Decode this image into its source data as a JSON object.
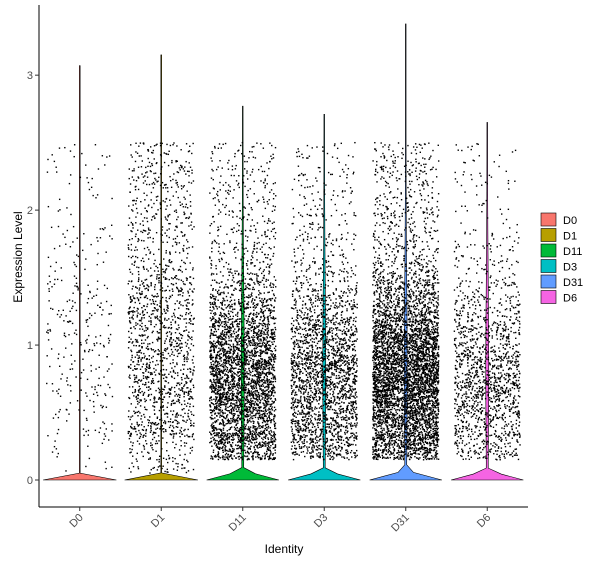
{
  "chart_data": {
    "type": "violin",
    "xlabel": "Identity",
    "ylabel": "Expression Level",
    "ylim": [
      -0.2,
      3.52
    ],
    "yticks": [
      0,
      1,
      2,
      3
    ],
    "categories": [
      "D0",
      "D1",
      "D11",
      "D3",
      "D31",
      "D6"
    ],
    "groups": [
      {
        "name": "D0",
        "color": "#F8766D",
        "n_points": 310,
        "max": 3.07,
        "median": 0.0,
        "density_at_zero": 0.03
      },
      {
        "name": "D1",
        "color": "#B79F00",
        "n_points": 1600,
        "max": 3.15,
        "median": 0.0,
        "density_at_zero": 0.03
      },
      {
        "name": "D11",
        "color": "#00BA38",
        "n_points": 3600,
        "max": 2.77,
        "median": 0.0,
        "density_at_zero": 0.55
      },
      {
        "name": "D3",
        "color": "#00BFC4",
        "n_points": 2400,
        "max": 2.71,
        "median": 0.0,
        "density_at_zero": 0.45
      },
      {
        "name": "D31",
        "color": "#619CFF",
        "n_points": 5200,
        "max": 3.38,
        "median": 0.0,
        "density_at_zero": 0.65
      },
      {
        "name": "D6",
        "color": "#F564E3",
        "n_points": 1500,
        "max": 2.65,
        "median": 0.0,
        "density_at_zero": 0.4
      }
    ],
    "legend": {
      "position": "right",
      "entries": [
        "D0",
        "D1",
        "D11",
        "D3",
        "D31",
        "D6"
      ]
    },
    "grid": false
  }
}
